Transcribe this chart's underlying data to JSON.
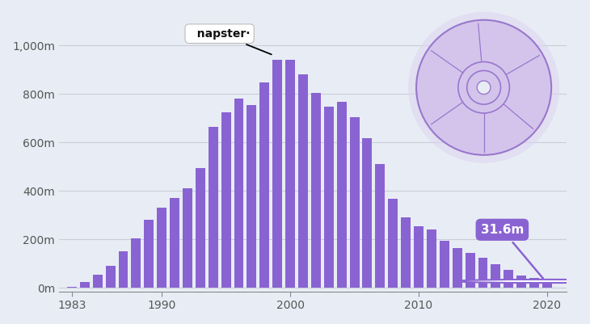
{
  "years": [
    1983,
    1984,
    1985,
    1986,
    1987,
    1988,
    1989,
    1990,
    1991,
    1992,
    1993,
    1994,
    1995,
    1996,
    1997,
    1998,
    1999,
    2000,
    2001,
    2002,
    2003,
    2004,
    2005,
    2006,
    2007,
    2008,
    2009,
    2010,
    2011,
    2012,
    2013,
    2014,
    2015,
    2016,
    2017,
    2018,
    2019,
    2020
  ],
  "values": [
    5,
    25,
    55,
    90,
    150,
    205,
    280,
    330,
    370,
    410,
    495,
    665,
    723,
    779,
    753,
    847,
    939,
    942,
    882,
    803,
    746,
    767,
    705,
    619,
    511,
    369,
    292,
    253,
    240,
    193,
    165,
    143,
    125,
    99,
    75,
    52,
    40,
    32
  ],
  "bar_color": "#8A63D2",
  "background_color": "#E8EDF5",
  "grid_color": "#C8CDD8",
  "ytick_labels": [
    "0m",
    "200m",
    "400m",
    "600m",
    "800m",
    "1,000m"
  ],
  "ytick_values": [
    0,
    200,
    400,
    600,
    800,
    1000
  ],
  "xtick_values": [
    1983,
    1990,
    2000,
    2010,
    2020
  ],
  "napster_year": 1999,
  "napster_value": 939,
  "cd_color_fill": "#D4C4EC",
  "cd_color_edge": "#9977CC",
  "annotation_31_6": "31.6m"
}
